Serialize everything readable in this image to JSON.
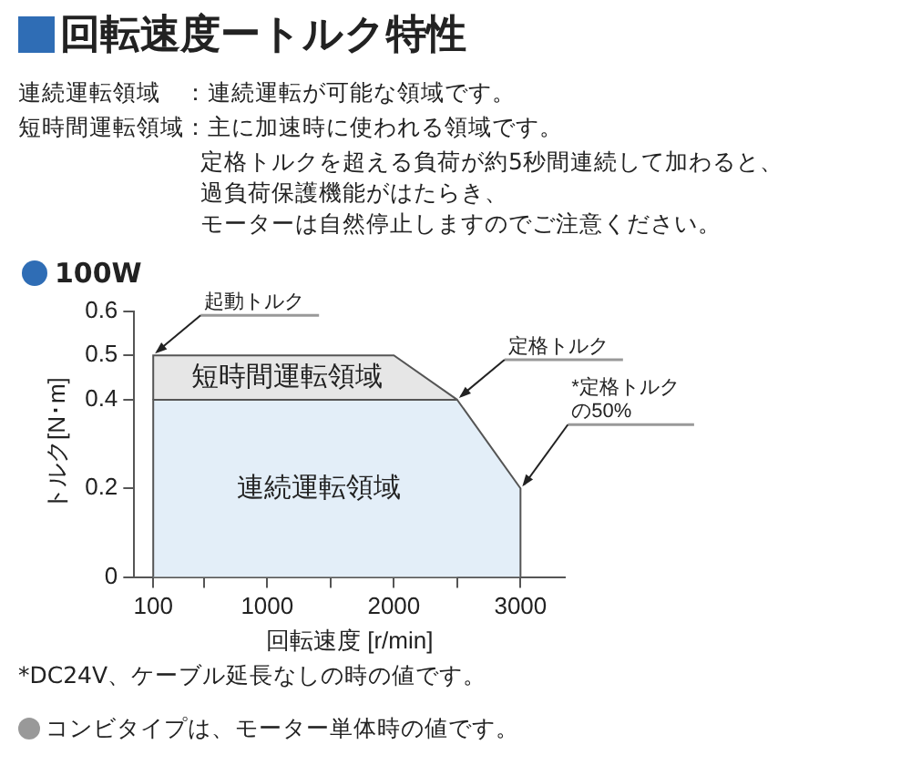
{
  "chart_data": {
    "type": "area",
    "title": "回転速度ートルク特性",
    "subtitle": "100W",
    "xlabel": "回転速度 [r/min]",
    "ylabel": "トルク[N･m]",
    "xlim": [
      -50,
      3350
    ],
    "xticks": [
      100,
      {
        "value": 500,
        "label": null
      },
      1000,
      {
        "value": 1500,
        "label": null
      },
      2000,
      {
        "value": 2500,
        "label": null
      },
      3000
    ],
    "ylim": [
      0,
      0.6
    ],
    "yticks": [
      0,
      0.2,
      0.4,
      0.5,
      0.6
    ],
    "grid": false,
    "legend": false,
    "series": [
      {
        "name": "連続運転領域",
        "color": "#e3eef8",
        "x": [
          100,
          100,
          2500,
          3000,
          3000
        ],
        "values": [
          0,
          0.4,
          0.4,
          0.2,
          0
        ]
      },
      {
        "name": "短時間運転領域",
        "color": "#e6e6e6",
        "x": [
          100,
          100,
          2000,
          2500
        ],
        "values": [
          0.4,
          0.5,
          0.5,
          0.4
        ]
      }
    ],
    "annotations": [
      "連続運転領域　：連続運転が可能な領域です。",
      "短時間運転領域：主に加速時に使われる領域です。",
      "定格トルクを超える負荷が約5秒間連続して加わると、",
      "過負荷保護機能がはたらき、",
      "モーターは自然停止しますのでご注意ください。",
      {
        "text": "起動トルク",
        "x": 100,
        "y": 0.5
      },
      {
        "text": "定格トルク",
        "x": 2500,
        "y": 0.4
      },
      {
        "text": "*定格トルクの50%",
        "x": 3000,
        "y": 0.2
      },
      "*DC24V、ケーブル延長なしの時の値です。",
      "コンビタイプは、モーター単体時の値です。"
    ]
  }
}
